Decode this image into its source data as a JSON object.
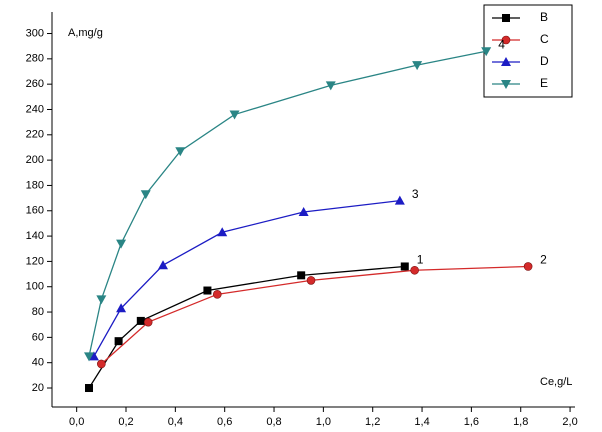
{
  "chart_data": {
    "type": "line",
    "x_label": "Ce,g/L",
    "y_label": "A,mg/g",
    "xlim": [
      -0.1,
      2.02
    ],
    "ylim": [
      5,
      317
    ],
    "xticks": [
      {
        "value": 0,
        "label": "0,0"
      },
      {
        "value": 0.2,
        "label": "0,2"
      },
      {
        "value": 0.4,
        "label": "0,4"
      },
      {
        "value": 0.6,
        "label": "0,6"
      },
      {
        "value": 0.8,
        "label": "0,8"
      },
      {
        "value": 1,
        "label": "1,0"
      },
      {
        "value": 1.2,
        "label": "1,2"
      },
      {
        "value": 1.4,
        "label": "1,4"
      },
      {
        "value": 1.6,
        "label": "1,6"
      },
      {
        "value": 1.8,
        "label": "1,8"
      },
      {
        "value": 2,
        "label": "2,0"
      }
    ],
    "yticks": [
      20,
      40,
      60,
      80,
      100,
      120,
      140,
      160,
      180,
      200,
      220,
      240,
      260,
      280,
      300
    ],
    "grid": false,
    "legend": "top-right",
    "series": [
      {
        "name": "B",
        "color": "#000000",
        "marker": "square",
        "label": "1",
        "x": [
          0.05,
          0.17,
          0.26,
          0.53,
          0.91,
          1.33
        ],
        "values": [
          20,
          57,
          73,
          97,
          109,
          116
        ]
      },
      {
        "name": "C",
        "color": "#d42a2a",
        "marker": "circle",
        "label": "2",
        "x": [
          0.1,
          0.29,
          0.57,
          0.95,
          1.37,
          1.83
        ],
        "values": [
          39,
          72,
          94,
          105,
          113,
          116
        ]
      },
      {
        "name": "D",
        "color": "#1c1cc4",
        "marker": "triangle-up",
        "label": "3",
        "x": [
          0.07,
          0.18,
          0.35,
          0.59,
          0.92,
          1.31
        ],
        "values": [
          45,
          83,
          117,
          143,
          159,
          168
        ]
      },
      {
        "name": "E",
        "color": "#2a8585",
        "marker": "triangle-down",
        "label": "4",
        "x": [
          0.05,
          0.1,
          0.18,
          0.28,
          0.42,
          0.64,
          1.03,
          1.38,
          1.66
        ],
        "values": [
          45,
          90,
          134,
          173,
          207,
          236,
          259,
          275,
          286
        ]
      }
    ]
  }
}
